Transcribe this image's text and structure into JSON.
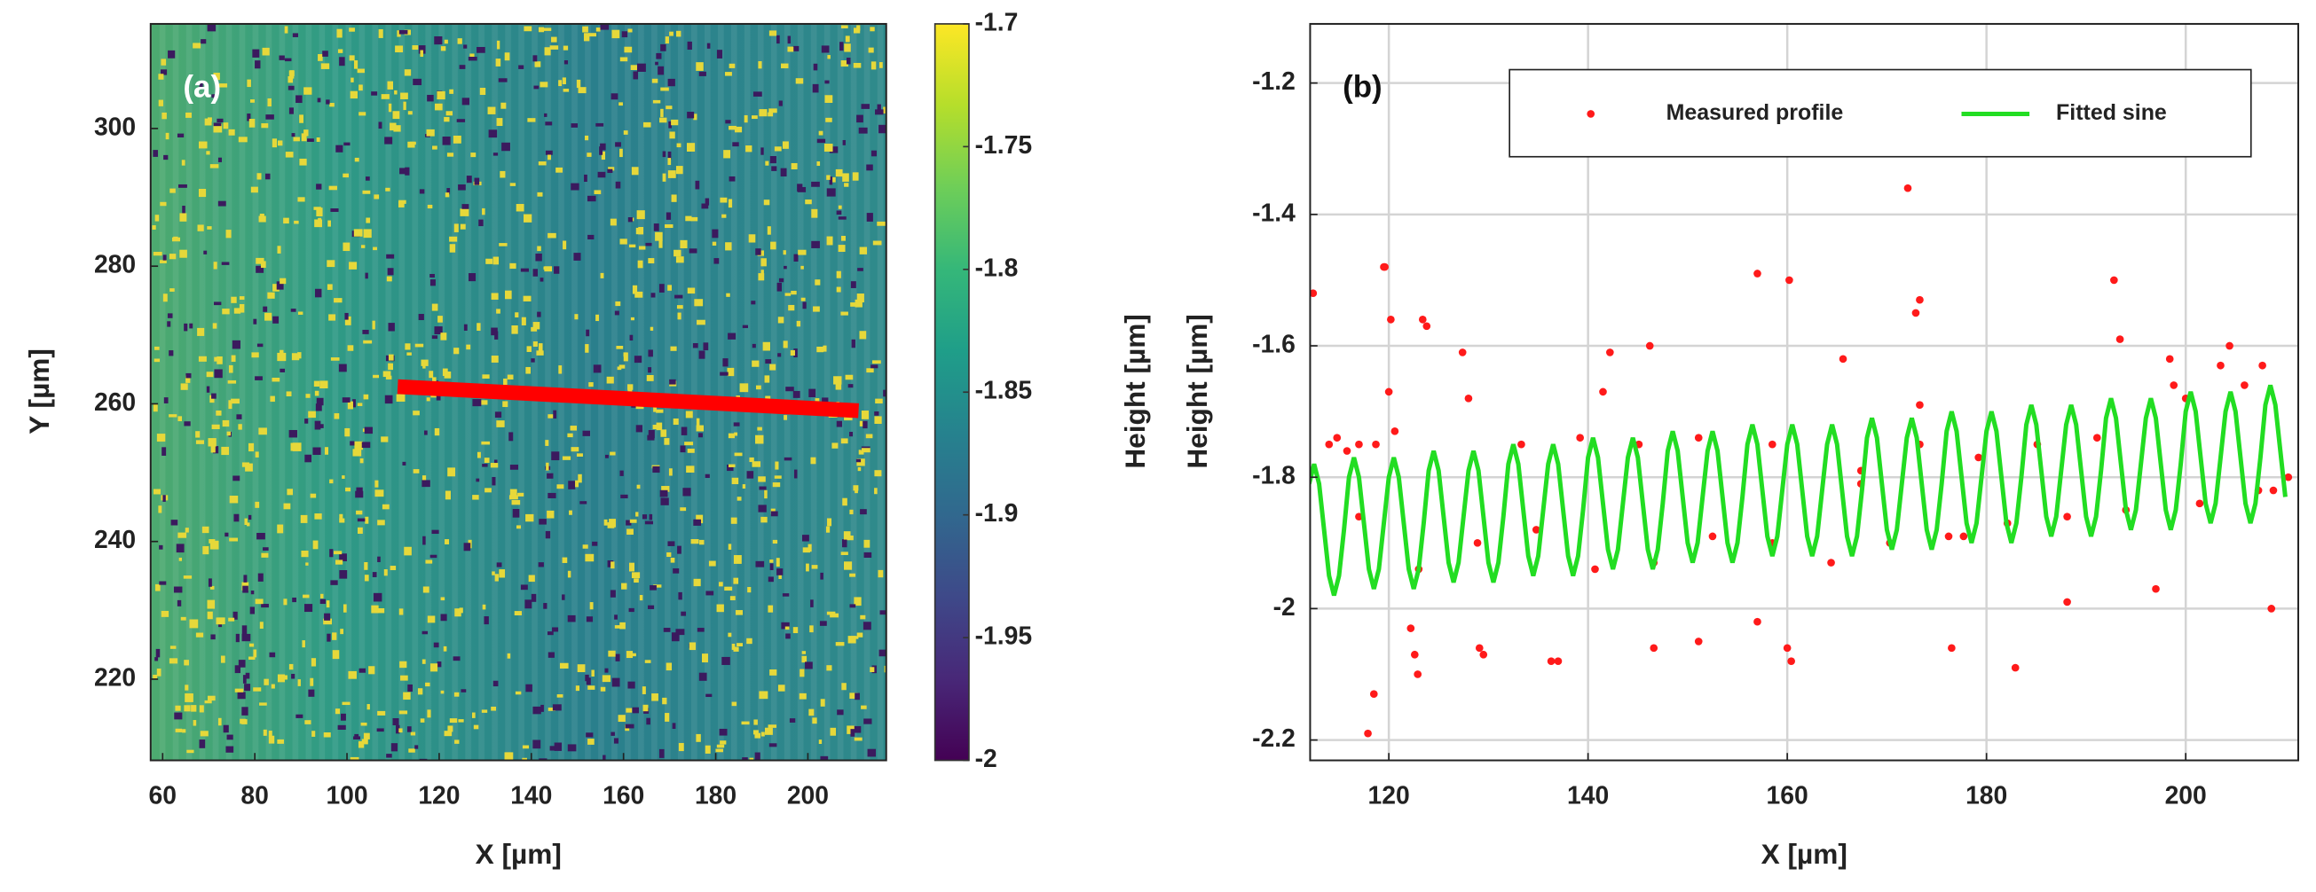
{
  "chart_data": [
    {
      "type": "heatmap",
      "title": "(a)",
      "xlabel": "X [µm]",
      "ylabel": "Y [µm]",
      "xlim": [
        57.4,
        217
      ],
      "ylim": [
        208.2,
        315.2
      ],
      "xticks": [
        60,
        80,
        100,
        120,
        140,
        160,
        180,
        200
      ],
      "yticks": [
        220,
        240,
        260,
        280,
        300
      ],
      "colorbar": {
        "label": "Height [µm]",
        "lim": [
          -2,
          -1.7
        ],
        "ticks": [
          -1.7,
          -1.75,
          -1.8,
          -1.85,
          -1.9,
          -1.95,
          -2
        ],
        "colormap": "viridis"
      },
      "profile_line": {
        "x": [
          111,
          211
        ],
        "y": [
          262.5,
          259
        ],
        "color": "#ff0000"
      }
    },
    {
      "type": "scatter",
      "title": "(b)",
      "xlabel": "X [µm]",
      "ylabel": "Height [µm]",
      "xlim": [
        112.1,
        211.3
      ],
      "ylim": [
        -2.231,
        -1.11
      ],
      "xticks": [
        120,
        140,
        160,
        180,
        200
      ],
      "yticks": [
        -1.2,
        -1.4,
        -1.6,
        -1.8,
        -2,
        -2.2
      ],
      "grid": true,
      "legend": "upper right",
      "series": [
        {
          "name": "Measured profile",
          "type": "scatter",
          "color": "#ff1a1a",
          "x": [
            112.4,
            119.5,
            119.6,
            120.2,
            117.9,
            118.5,
            120.0,
            120.6,
            123.4,
            123.8,
            127.4,
            128.0,
            122.2,
            122.6,
            122.9,
            129.1,
            129.5,
            136.3,
            137.0,
            142.2,
            146.2,
            141.5,
            146.6,
            151.1,
            157.0,
            157.0,
            160.2,
            160.4,
            160.0,
            165.6,
            172.1,
            173.3,
            172.9,
            173.3,
            176.5,
            182.9,
            192.8,
            193.4,
            198.4,
            198.8,
            203.5,
            204.4,
            205.9,
            207.7,
            208.6,
            197.0,
            188.1,
            177.7,
            167.4,
            114.0,
            114.8,
            115.8,
            117.0,
            118.7,
            133.3,
            139.2,
            145.1,
            151.1,
            158.5,
            167.4,
            173.3,
            179.2,
            185.1,
            191.1,
            200.0,
            210.3,
            208.8,
            117.0,
            123.0,
            128.9,
            134.8,
            140.7,
            146.6,
            152.5,
            158.5,
            164.4,
            170.3,
            176.2,
            182.1,
            188.1,
            194.0,
            201.4,
            207.3
          ],
          "values": [
            -1.52,
            -1.48,
            -1.48,
            -1.56,
            -2.19,
            -2.13,
            -1.67,
            -1.73,
            -1.56,
            -1.57,
            -1.61,
            -1.68,
            -2.03,
            -2.07,
            -2.1,
            -2.06,
            -2.07,
            -2.08,
            -2.08,
            -1.61,
            -1.6,
            -1.67,
            -2.06,
            -2.05,
            -2.02,
            -1.49,
            -1.5,
            -2.08,
            -2.06,
            -1.62,
            -1.36,
            -1.53,
            -1.55,
            -1.69,
            -2.06,
            -2.09,
            -1.5,
            -1.59,
            -1.62,
            -1.66,
            -1.63,
            -1.6,
            -1.66,
            -1.63,
            -2.0,
            -1.97,
            -1.99,
            -1.89,
            -1.79,
            -1.75,
            -1.74,
            -1.76,
            -1.75,
            -1.75,
            -1.75,
            -1.74,
            -1.75,
            -1.74,
            -1.75,
            -1.81,
            -1.75,
            -1.77,
            -1.75,
            -1.74,
            -1.68,
            -1.8,
            -1.82,
            -1.86,
            -1.94,
            -1.9,
            -1.88,
            -1.94,
            -1.93,
            -1.89,
            -1.9,
            -1.93,
            -1.9,
            -1.89,
            -1.87,
            -1.86,
            -1.85,
            -1.84,
            -1.82
          ]
        },
        {
          "name": "Fitted sine",
          "type": "line",
          "color": "#22dd22",
          "x": [
            112,
            112.5,
            113,
            113.5,
            114,
            114.5,
            115,
            115.5,
            116,
            116.5,
            117,
            117.5,
            118,
            118.5,
            119,
            119.5,
            120,
            120.5,
            121,
            121.5,
            122,
            122.5,
            123,
            123.5,
            124,
            124.5,
            125,
            125.5,
            126,
            126.5,
            127,
            127.5,
            128,
            128.5,
            129,
            129.5,
            130,
            130.5,
            131,
            131.5,
            132,
            132.5,
            133,
            133.5,
            134,
            134.5,
            135,
            135.5,
            136,
            136.5,
            137,
            137.5,
            138,
            138.5,
            139,
            139.5,
            140,
            140.5,
            141,
            141.5,
            142,
            142.5,
            143,
            143.5,
            144,
            144.5,
            145,
            145.5,
            146,
            146.5,
            147,
            147.5,
            148,
            148.5,
            149,
            149.5,
            150,
            150.5,
            151,
            151.5,
            152,
            152.5,
            153,
            153.5,
            154,
            154.5,
            155,
            155.5,
            156,
            156.5,
            157,
            157.5,
            158,
            158.5,
            159,
            159.5,
            160,
            160.5,
            161,
            161.5,
            162,
            162.5,
            163,
            163.5,
            164,
            164.5,
            165,
            165.5,
            166,
            166.5,
            167,
            167.5,
            168,
            168.5,
            169,
            169.5,
            170,
            170.5,
            171,
            171.5,
            172,
            172.5,
            173,
            173.5,
            174,
            174.5,
            175,
            175.5,
            176,
            176.5,
            177,
            177.5,
            178,
            178.5,
            179,
            179.5,
            180,
            180.5,
            181,
            181.5,
            182,
            182.5,
            183,
            183.5,
            184,
            184.5,
            185,
            185.5,
            186,
            186.5,
            187,
            187.5,
            188,
            188.5,
            189,
            189.5,
            190,
            190.5,
            191,
            191.5,
            192,
            192.5,
            193,
            193.5,
            194,
            194.5,
            195,
            195.5,
            196,
            196.5,
            197,
            197.5,
            198,
            198.5,
            199,
            199.5,
            200,
            200.5,
            201,
            201.5,
            202,
            202.5,
            203,
            203.5,
            204,
            204.5,
            205,
            205.5,
            206,
            206.5,
            207,
            207.5,
            208,
            208.5,
            209,
            209.5,
            210
          ],
          "values": [
            -1.81,
            -1.78,
            -1.81,
            -1.88,
            -1.95,
            -1.98,
            -1.95,
            -1.88,
            -1.8,
            -1.77,
            -1.8,
            -1.87,
            -1.94,
            -1.97,
            -1.94,
            -1.87,
            -1.8,
            -1.77,
            -1.8,
            -1.87,
            -1.94,
            -1.97,
            -1.94,
            -1.87,
            -1.79,
            -1.76,
            -1.79,
            -1.86,
            -1.93,
            -1.96,
            -1.93,
            -1.86,
            -1.79,
            -1.76,
            -1.79,
            -1.86,
            -1.93,
            -1.96,
            -1.93,
            -1.86,
            -1.78,
            -1.75,
            -1.78,
            -1.85,
            -1.92,
            -1.95,
            -1.92,
            -1.85,
            -1.78,
            -1.75,
            -1.78,
            -1.85,
            -1.92,
            -1.95,
            -1.92,
            -1.85,
            -1.77,
            -1.74,
            -1.77,
            -1.84,
            -1.91,
            -1.94,
            -1.91,
            -1.84,
            -1.77,
            -1.74,
            -1.77,
            -1.84,
            -1.91,
            -1.94,
            -1.91,
            -1.84,
            -1.76,
            -1.73,
            -1.76,
            -1.83,
            -1.9,
            -1.93,
            -1.9,
            -1.83,
            -1.76,
            -1.73,
            -1.76,
            -1.83,
            -1.9,
            -1.93,
            -1.9,
            -1.83,
            -1.75,
            -1.72,
            -1.75,
            -1.82,
            -1.89,
            -1.92,
            -1.89,
            -1.82,
            -1.75,
            -1.72,
            -1.75,
            -1.82,
            -1.89,
            -1.92,
            -1.89,
            -1.82,
            -1.75,
            -1.72,
            -1.75,
            -1.82,
            -1.89,
            -1.92,
            -1.89,
            -1.82,
            -1.74,
            -1.71,
            -1.74,
            -1.81,
            -1.88,
            -1.91,
            -1.88,
            -1.81,
            -1.74,
            -1.71,
            -1.74,
            -1.81,
            -1.88,
            -1.91,
            -1.88,
            -1.81,
            -1.73,
            -1.7,
            -1.73,
            -1.8,
            -1.87,
            -1.9,
            -1.87,
            -1.8,
            -1.73,
            -1.7,
            -1.73,
            -1.8,
            -1.87,
            -1.9,
            -1.87,
            -1.8,
            -1.72,
            -1.69,
            -1.72,
            -1.79,
            -1.86,
            -1.89,
            -1.86,
            -1.79,
            -1.72,
            -1.69,
            -1.72,
            -1.79,
            -1.86,
            -1.89,
            -1.86,
            -1.79,
            -1.71,
            -1.68,
            -1.71,
            -1.78,
            -1.85,
            -1.88,
            -1.85,
            -1.78,
            -1.71,
            -1.68,
            -1.71,
            -1.78,
            -1.85,
            -1.88,
            -1.85,
            -1.78,
            -1.7,
            -1.67,
            -1.7,
            -1.77,
            -1.84,
            -1.87,
            -1.84,
            -1.77,
            -1.7,
            -1.67,
            -1.7,
            -1.77,
            -1.84,
            -1.87,
            -1.84,
            -1.77,
            -1.69,
            -1.66,
            -1.69,
            -1.76,
            -1.83
          ]
        }
      ]
    }
  ]
}
